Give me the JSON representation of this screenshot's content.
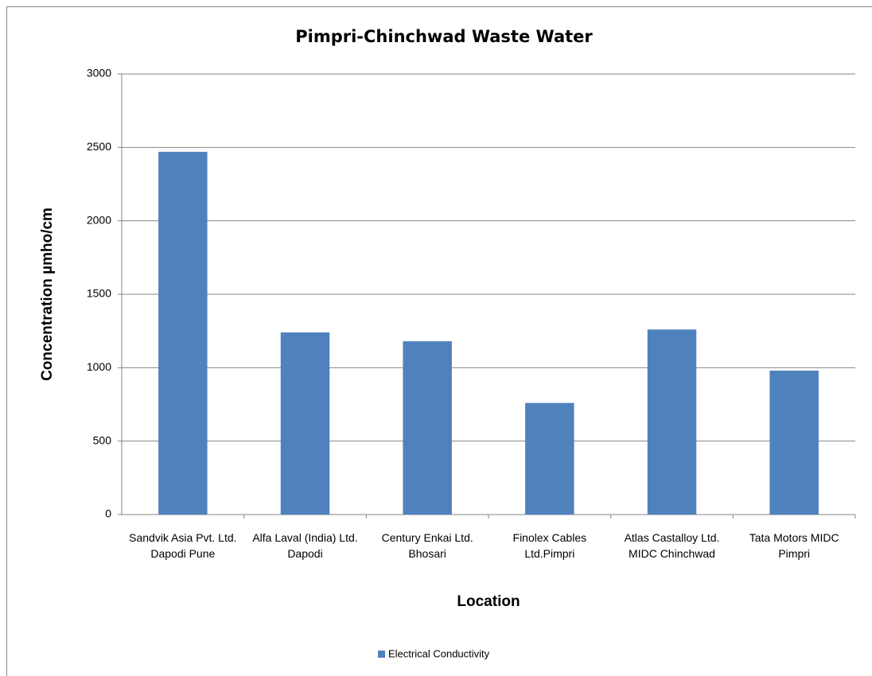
{
  "chart_data": {
    "type": "bar",
    "title": "Pimpri-Chinchwad Waste Water",
    "xlabel": "Location",
    "ylabel": "Concentration µmho/cm",
    "categories": [
      "Sandvik Asia Pvt. Ltd. Dapodi Pune",
      "Alfa Laval (India) Ltd. Dapodi",
      "Century Enkai Ltd. Bhosari",
      "Finolex Cables Ltd.Pimpri",
      "Atlas Castalloy Ltd. MIDC Chinchwad",
      "Tata Motors MIDC Pimpri"
    ],
    "series": [
      {
        "name": "Electrical Conductivity",
        "color": "#4f81bd",
        "values": [
          2470,
          1240,
          1180,
          760,
          1260,
          980
        ]
      }
    ],
    "ylim": [
      0,
      3000
    ],
    "yticks": [
      0,
      500,
      1000,
      1500,
      2000,
      2500,
      3000
    ],
    "grid": true,
    "legend": "bottom"
  }
}
